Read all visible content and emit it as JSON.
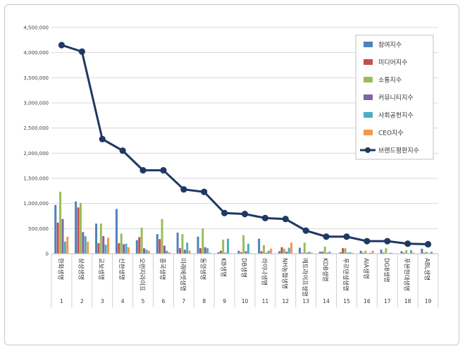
{
  "chart_data": {
    "type": "bar",
    "title": "",
    "xlabel": "",
    "ylabel": "",
    "ylim": [
      0,
      4500000
    ],
    "yticks": [
      0,
      500000,
      1000000,
      1500000,
      2000000,
      2500000,
      3000000,
      3500000,
      4000000,
      4500000
    ],
    "ytick_labels": [
      "0",
      "500,000",
      "1,000,000",
      "1,500,000",
      "2,000,000",
      "2,500,000",
      "3,000,000",
      "3,500,000",
      "4,000,000",
      "4,500,000"
    ],
    "grid": true,
    "legend_position": "top-right",
    "categories": [
      "한화생명",
      "삼성생명",
      "교보생명",
      "신한생명",
      "오렌지라이프",
      "흥국생명",
      "미래에셋생명",
      "동양생명",
      "KB생명",
      "DB생명",
      "라이나생명",
      "NH농협생명",
      "메트라이프생명",
      "KDB생명",
      "푸르덴셜생명",
      "AIA생명",
      "DGB생명",
      "푸본현대생명",
      "ABL생명"
    ],
    "ranks": [
      "1",
      "2",
      "3",
      "4",
      "5",
      "6",
      "7",
      "8",
      "9",
      "10",
      "11",
      "12",
      "13",
      "14",
      "15",
      "16",
      "17",
      "18",
      "19"
    ],
    "series": [
      {
        "name": "참여지수",
        "kind": "bar",
        "color": "#4f81bd",
        "values": [
          970000,
          1040000,
          600000,
          890000,
          270000,
          390000,
          420000,
          340000,
          30000,
          60000,
          300000,
          50000,
          120000,
          40000,
          30000,
          60000,
          80000,
          50000,
          100000
        ]
      },
      {
        "name": "미디어지수",
        "kind": "bar",
        "color": "#c0504d",
        "values": [
          620000,
          920000,
          210000,
          210000,
          330000,
          290000,
          110000,
          110000,
          60000,
          30000,
          50000,
          130000,
          20000,
          40000,
          110000,
          20000,
          20000,
          20000,
          20000
        ]
      },
      {
        "name": "소통지수",
        "kind": "bar",
        "color": "#9bbb59",
        "values": [
          1230000,
          1010000,
          600000,
          400000,
          520000,
          690000,
          390000,
          500000,
          280000,
          370000,
          170000,
          100000,
          220000,
          140000,
          110000,
          60000,
          110000,
          70000,
          40000
        ]
      },
      {
        "name": "커뮤니티지수",
        "kind": "bar",
        "color": "#8064a2",
        "values": [
          690000,
          430000,
          350000,
          190000,
          110000,
          160000,
          80000,
          130000,
          20000,
          50000,
          20000,
          40000,
          20000,
          20000,
          20000,
          10000,
          10000,
          10000,
          10000
        ]
      },
      {
        "name": "사회공헌지수",
        "kind": "bar",
        "color": "#4bacc6",
        "values": [
          240000,
          350000,
          180000,
          200000,
          80000,
          60000,
          220000,
          110000,
          300000,
          200000,
          60000,
          120000,
          40000,
          40000,
          30000,
          20000,
          20000,
          70000,
          40000
        ]
      },
      {
        "name": "CEO지수",
        "kind": "bar",
        "color": "#f79646",
        "values": [
          340000,
          240000,
          320000,
          130000,
          60000,
          30000,
          60000,
          20000,
          10000,
          10000,
          100000,
          220000,
          20000,
          10000,
          20000,
          60000,
          10000,
          20000,
          10000
        ]
      },
      {
        "name": "브랜드평판지수",
        "kind": "line",
        "color": "#1f3864",
        "values": [
          4150000,
          4020000,
          2280000,
          2050000,
          1660000,
          1660000,
          1280000,
          1230000,
          810000,
          790000,
          710000,
          690000,
          460000,
          340000,
          340000,
          250000,
          250000,
          200000,
          190000
        ]
      }
    ]
  }
}
